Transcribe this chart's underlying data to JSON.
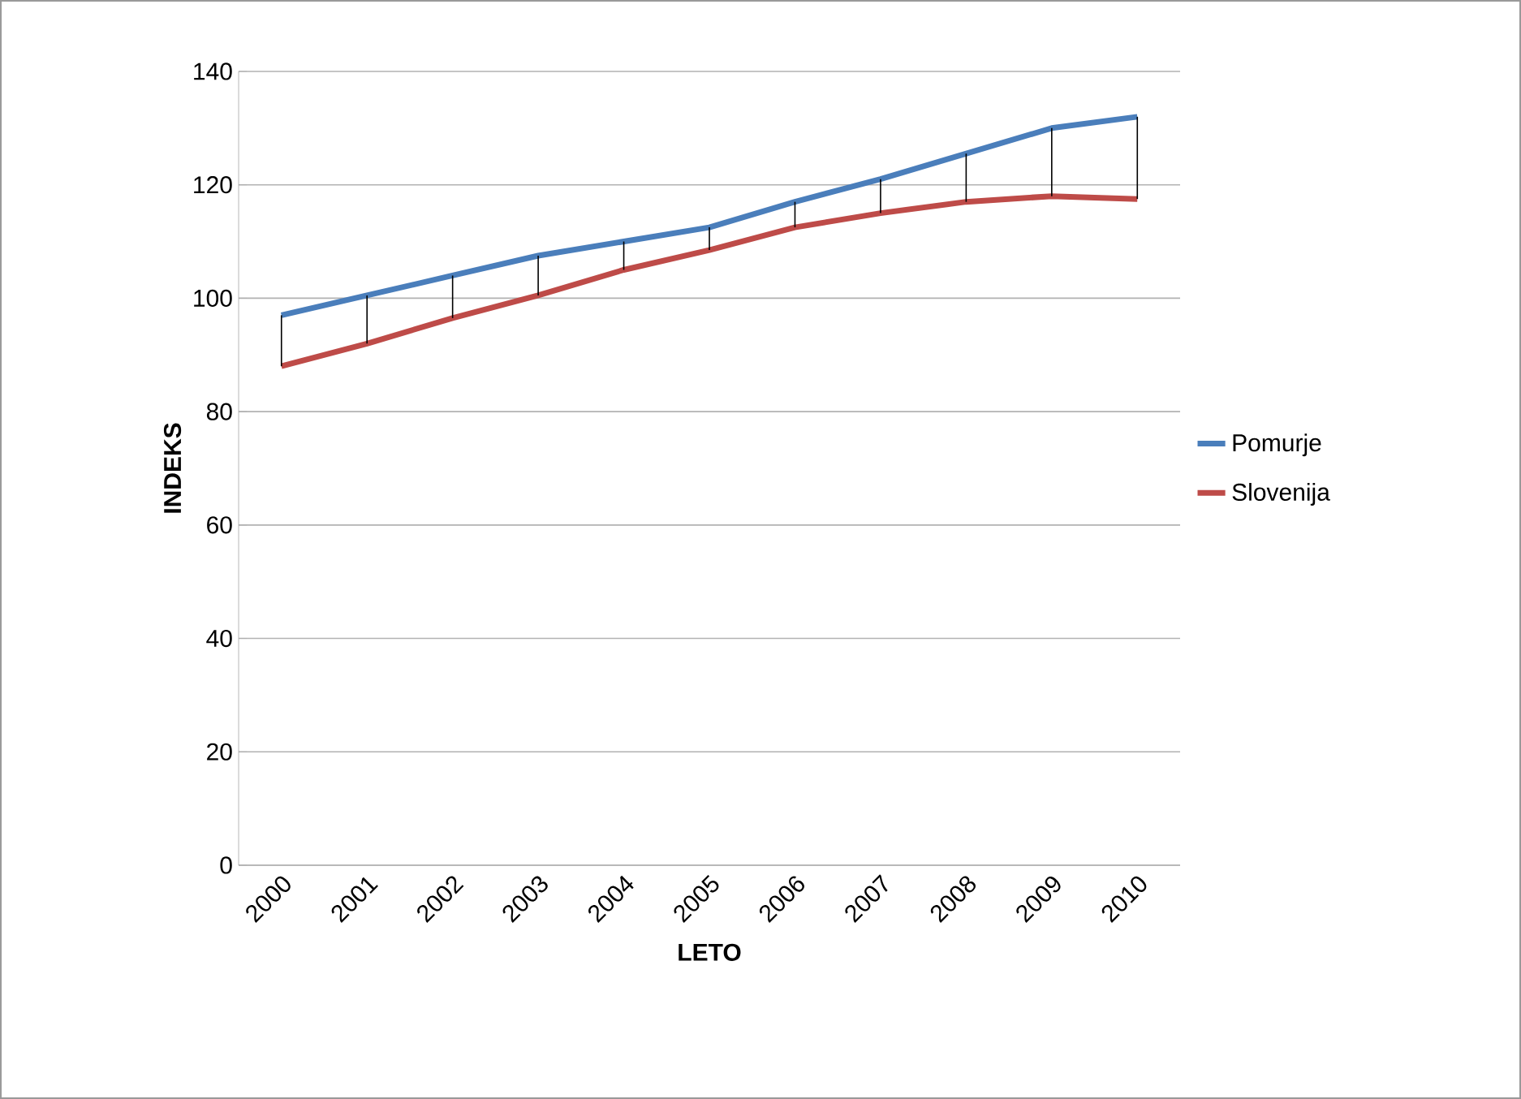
{
  "chart_data": {
    "type": "line",
    "xlabel": "LETO",
    "ylabel": "INDEKS",
    "categories": [
      "2000",
      "2001",
      "2002",
      "2003",
      "2004",
      "2005",
      "2006",
      "2007",
      "2008",
      "2009",
      "2010"
    ],
    "series": [
      {
        "name": "Pomurje",
        "color": "#4a7ebb",
        "values": [
          97,
          100.5,
          104,
          107.5,
          110,
          112.5,
          117,
          121,
          125.5,
          130,
          132
        ],
        "errors": [
          [
            88,
            97
          ],
          [
            92,
            100.5
          ],
          [
            96.5,
            104
          ],
          [
            100.5,
            107.5
          ],
          [
            105,
            110
          ],
          [
            108.5,
            112.5
          ],
          [
            112.5,
            117
          ],
          [
            115,
            121
          ],
          [
            117,
            125.5
          ],
          [
            118,
            130
          ],
          [
            117.5,
            132
          ]
        ]
      },
      {
        "name": "Slovenija",
        "color": "#be4b48",
        "values": [
          88,
          92,
          96.5,
          100.5,
          105,
          108.5,
          112.5,
          115,
          117,
          118,
          117.5
        ]
      }
    ],
    "ylim": [
      0,
      140
    ],
    "yticks": [
      0,
      20,
      40,
      60,
      80,
      100,
      120,
      140
    ],
    "grid": "y",
    "legend": "right",
    "marker": "none",
    "line_style": "solid"
  }
}
